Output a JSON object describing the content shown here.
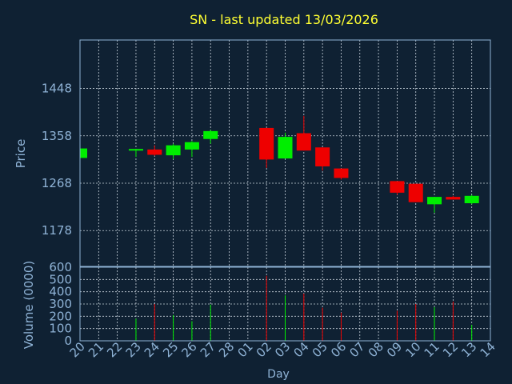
{
  "chart_data": {
    "type": "candlestick",
    "title": "SN - last updated 13/03/2026",
    "xlabel": "Day",
    "ylabel_price": "Price",
    "ylabel_volume": "Volume (0000)",
    "price_ticks": [
      1178,
      1268,
      1358,
      1448
    ],
    "price_ylim": [
      1110,
      1540
    ],
    "volume_ticks": [
      0,
      100,
      200,
      300,
      400,
      500,
      600
    ],
    "volume_ylim": [
      0,
      600
    ],
    "x_labels": [
      "20",
      "21",
      "22",
      "23",
      "24",
      "25",
      "26",
      "27",
      "28",
      "01",
      "02",
      "03",
      "04",
      "05",
      "06",
      "07",
      "08",
      "09",
      "10",
      "11",
      "12",
      "13",
      "14"
    ],
    "grid": true,
    "colors": {
      "background": "#0f2133",
      "plot_border": "#8fb3d6",
      "grid": "#c8d2dc",
      "up": "#00ee00",
      "down": "#ee0000",
      "title": "#ffff33",
      "axis_text": "#8fb3d6"
    },
    "candles": [
      {
        "x": 0,
        "open": 1316,
        "close": 1334,
        "high": 1334,
        "low": 1316,
        "volume": 0
      },
      {
        "x": 3,
        "open": 1331,
        "close": 1333,
        "high": 1333,
        "low": 1318,
        "volume": 180
      },
      {
        "x": 4,
        "open": 1332,
        "close": 1322,
        "high": 1340,
        "low": 1320,
        "volume": 300
      },
      {
        "x": 5,
        "open": 1321,
        "close": 1340,
        "high": 1343,
        "low": 1314,
        "volume": 210
      },
      {
        "x": 6,
        "open": 1332,
        "close": 1346,
        "high": 1348,
        "low": 1318,
        "volume": 160
      },
      {
        "x": 7,
        "open": 1352,
        "close": 1367,
        "high": 1369,
        "low": 1343,
        "volume": 295
      },
      {
        "x": 10,
        "open": 1373,
        "close": 1313,
        "high": 1373,
        "low": 1297,
        "volume": 530
      },
      {
        "x": 11,
        "open": 1315,
        "close": 1356,
        "high": 1364,
        "low": 1315,
        "volume": 370
      },
      {
        "x": 12,
        "open": 1363,
        "close": 1330,
        "high": 1396,
        "low": 1330,
        "volume": 385
      },
      {
        "x": 13,
        "open": 1336,
        "close": 1300,
        "high": 1336,
        "low": 1292,
        "volume": 270
      },
      {
        "x": 14,
        "open": 1296,
        "close": 1278,
        "high": 1296,
        "low": 1275,
        "volume": 230
      },
      {
        "x": 17,
        "open": 1272,
        "close": 1250,
        "high": 1272,
        "low": 1246,
        "volume": 245
      },
      {
        "x": 18,
        "open": 1267,
        "close": 1232,
        "high": 1267,
        "low": 1232,
        "volume": 300
      },
      {
        "x": 19,
        "open": 1228,
        "close": 1242,
        "high": 1242,
        "low": 1212,
        "volume": 275
      },
      {
        "x": 20,
        "open": 1242,
        "close": 1237,
        "high": 1244,
        "low": 1237,
        "volume": 320
      },
      {
        "x": 21,
        "open": 1230,
        "close": 1244,
        "high": 1246,
        "low": 1228,
        "volume": 130
      }
    ]
  }
}
